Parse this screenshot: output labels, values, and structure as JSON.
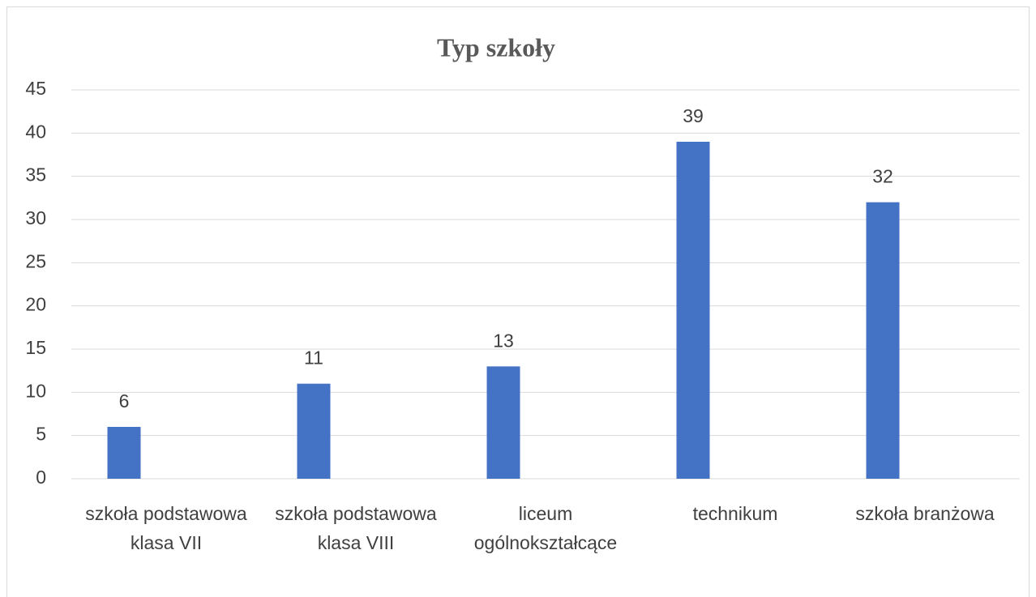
{
  "chart_data": {
    "type": "bar",
    "title": "Typ szkoły",
    "categories": [
      "szkoła podstawowa klasa VII",
      "szkoła podstawowa klasa VIII",
      "liceum ogólnokształcące",
      "technikum",
      "szkoła branżowa"
    ],
    "values": [
      6,
      11,
      13,
      39,
      32
    ],
    "color": "#4472c4",
    "ylim": [
      0,
      45
    ],
    "yticks": [
      0,
      5,
      10,
      15,
      20,
      25,
      30,
      35,
      40,
      45
    ],
    "grid": true
  }
}
